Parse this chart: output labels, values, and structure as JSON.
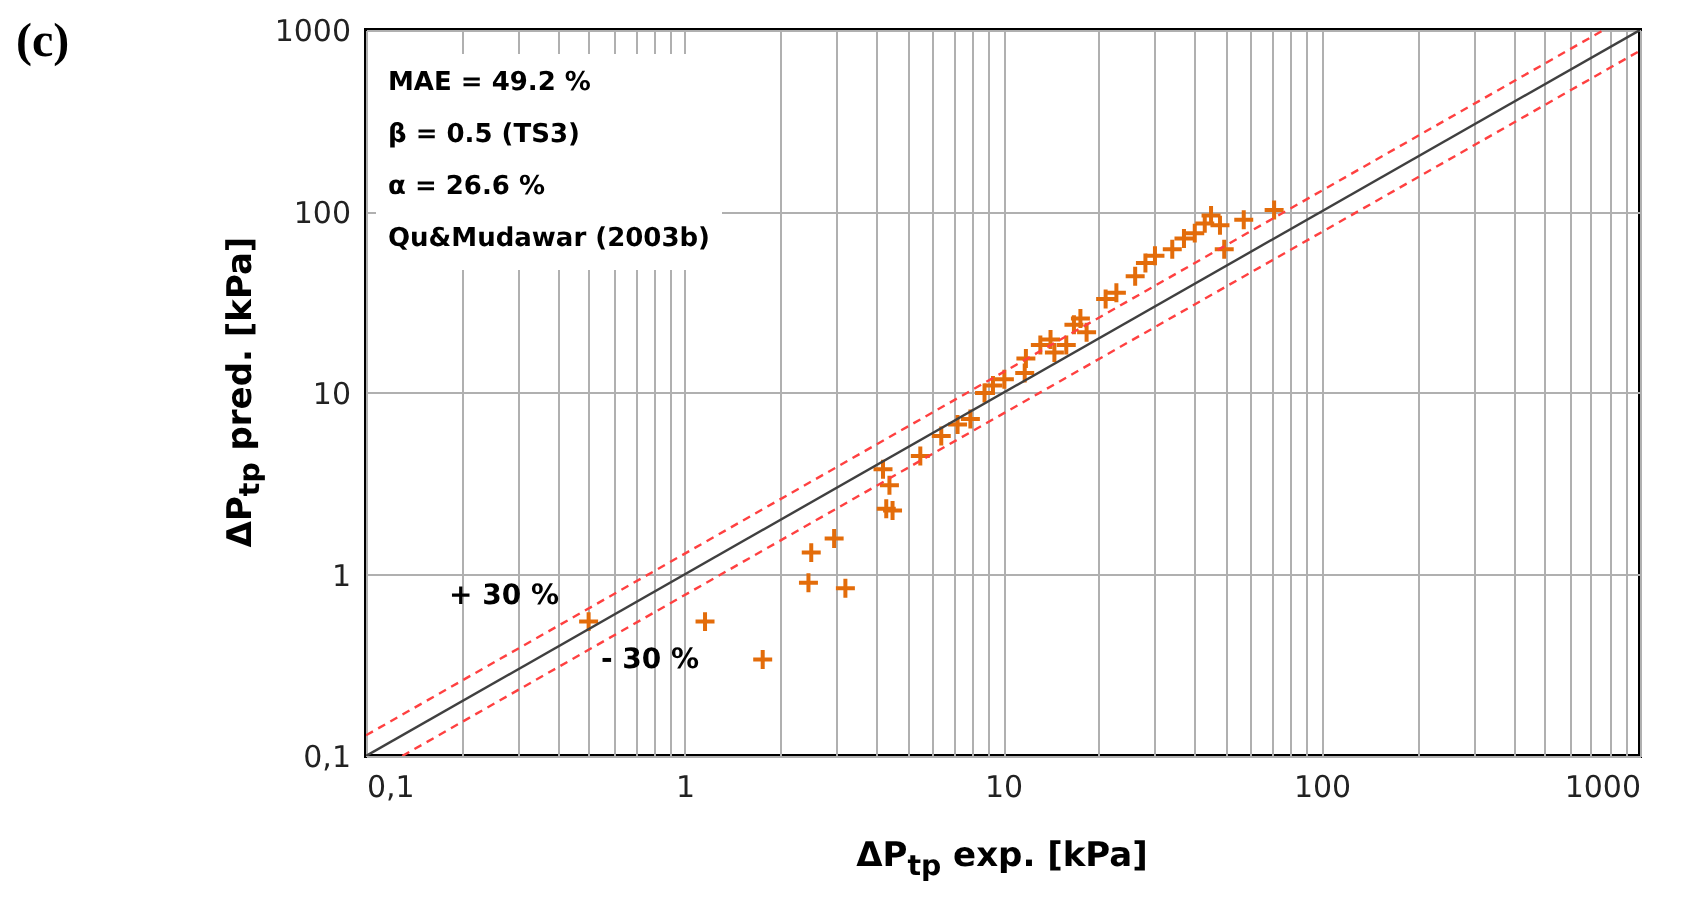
{
  "chart_data": {
    "type": "scatter",
    "xlabel": "ΔP$_{tp}$ exp. [kPa]",
    "ylabel": "ΔP$_{tp}$ pred. [kPa]",
    "log": "xy",
    "grid": true,
    "xlim": [
      0.1,
      1000
    ],
    "ylim": [
      0.1,
      1000
    ],
    "xticks": [
      {
        "value": 0.1,
        "label": "0,1"
      },
      {
        "value": 0.2,
        "label": null
      },
      {
        "value": 0.3,
        "label": null
      },
      {
        "value": 0.4,
        "label": null
      },
      {
        "value": 0.5,
        "label": null
      },
      {
        "value": 0.6,
        "label": null
      },
      {
        "value": 0.7,
        "label": null
      },
      {
        "value": 0.8,
        "label": null
      },
      {
        "value": 0.9,
        "label": null
      },
      1,
      {
        "value": 2,
        "label": null
      },
      {
        "value": 3,
        "label": null
      },
      {
        "value": 4,
        "label": null
      },
      {
        "value": 5,
        "label": null
      },
      {
        "value": 6,
        "label": null
      },
      {
        "value": 7,
        "label": null
      },
      {
        "value": 8,
        "label": null
      },
      {
        "value": 9,
        "label": null
      },
      10,
      {
        "value": 20,
        "label": null
      },
      {
        "value": 30,
        "label": null
      },
      {
        "value": 40,
        "label": null
      },
      {
        "value": 50,
        "label": null
      },
      {
        "value": 60,
        "label": null
      },
      {
        "value": 70,
        "label": null
      },
      {
        "value": 80,
        "label": null
      },
      {
        "value": 90,
        "label": null
      },
      100,
      {
        "value": 200,
        "label": null
      },
      {
        "value": 300,
        "label": null
      },
      {
        "value": 400,
        "label": null
      },
      {
        "value": 500,
        "label": null
      },
      {
        "value": 600,
        "label": null
      },
      {
        "value": 700,
        "label": null
      },
      {
        "value": 800,
        "label": null
      },
      {
        "value": 900,
        "label": null
      },
      1000
    ],
    "yticks": [
      {
        "value": 0.1,
        "label": "0,1"
      },
      1,
      10,
      100,
      1000
    ],
    "series": [
      {
        "marker": "cross",
        "color": "#e36c0a",
        "x": [
          0.5,
          1.16,
          1.76,
          2.45,
          2.5,
          2.95,
          3.2,
          4.2,
          4.4,
          4.3,
          4.5,
          5.5,
          6.4,
          7.2,
          7.9,
          8.75,
          9.3,
          10.1,
          11.7,
          11.8,
          13.1,
          14.1,
          14.5,
          15.8,
          16.7,
          17.5,
          18.3,
          21,
          22.7,
          26,
          28,
          30,
          34,
          37,
          40,
          43,
          45,
          48,
          49.5,
          57,
          71
        ],
        "values": [
          0.55,
          0.55,
          0.34,
          0.9,
          1.32,
          1.58,
          0.84,
          3.8,
          3.1,
          2.3,
          2.25,
          4.5,
          5.8,
          6.7,
          7.2,
          10,
          11,
          11.9,
          12.9,
          15.5,
          18.4,
          19.7,
          16.7,
          18.4,
          23.8,
          25.7,
          21.6,
          33,
          35.7,
          44,
          52,
          57,
          62,
          71,
          76,
          86,
          95,
          84,
          62,
          90,
          102
        ]
      },
      {
        "type": "line",
        "color": "#404040",
        "line_style": "solid",
        "x": [
          0.1,
          1000
        ],
        "values": [
          0.1,
          1000
        ]
      },
      {
        "type": "line",
        "color": "#ff4040",
        "line_style": "dashed",
        "x": [
          0.1,
          769.2
        ],
        "values": [
          0.13,
          1000
        ]
      },
      {
        "type": "line",
        "color": "#ff4040",
        "line_style": "dashed",
        "x": [
          0.13,
          1000
        ],
        "values": [
          0.1,
          769.2
        ]
      }
    ],
    "annotations": [
      "(c)",
      "MAE = 49.2 %",
      "β = 0.5 (TS3)",
      "α = 26.6 %",
      "Qu&Mudawar (2003b)",
      "+ 30 %",
      "- 30 %"
    ]
  }
}
